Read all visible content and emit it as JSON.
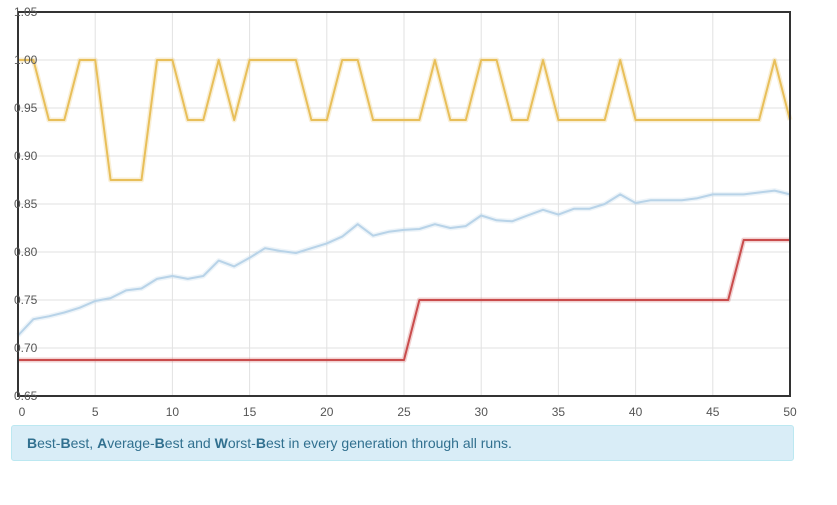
{
  "chart_data": {
    "type": "line",
    "x": [
      0,
      1,
      2,
      3,
      4,
      5,
      6,
      7,
      8,
      9,
      10,
      11,
      12,
      13,
      14,
      15,
      16,
      17,
      18,
      19,
      20,
      21,
      22,
      23,
      24,
      25,
      26,
      27,
      28,
      29,
      30,
      31,
      32,
      33,
      34,
      35,
      36,
      37,
      38,
      39,
      40,
      41,
      42,
      43,
      44,
      45,
      46,
      47,
      48,
      49,
      50
    ],
    "xlim": [
      0,
      50
    ],
    "ylim": [
      0.65,
      1.05
    ],
    "x_ticks": [
      0,
      5,
      10,
      15,
      20,
      25,
      30,
      35,
      40,
      45,
      50
    ],
    "y_ticks": [
      0.65,
      0.7,
      0.75,
      0.8,
      0.85,
      0.9,
      0.95,
      1.0,
      1.05
    ],
    "x_tick_labels": [
      "0",
      "5",
      "10",
      "15",
      "20",
      "25",
      "30",
      "35",
      "40",
      "45",
      "50"
    ],
    "y_tick_labels": [
      "0.65",
      "0.70",
      "0.75",
      "0.80",
      "0.85",
      "0.90",
      "0.95",
      "1.00",
      "1.05"
    ],
    "grid": true,
    "series": [
      {
        "color": "#e8bf5a",
        "values": [
          1.0,
          1.0,
          0.9375,
          0.9375,
          1.0,
          1.0,
          0.875,
          0.875,
          0.875,
          1.0,
          1.0,
          0.9375,
          0.9375,
          1.0,
          0.9375,
          1.0,
          1.0,
          1.0,
          1.0,
          0.9375,
          0.9375,
          1.0,
          1.0,
          0.9375,
          0.9375,
          0.9375,
          0.9375,
          1.0,
          0.9375,
          0.9375,
          1.0,
          1.0,
          0.9375,
          0.9375,
          1.0,
          0.9375,
          0.9375,
          0.9375,
          0.9375,
          1.0,
          0.9375,
          0.9375,
          0.9375,
          0.9375,
          0.9375,
          0.9375,
          0.9375,
          0.9375,
          0.9375,
          1.0,
          0.9375
        ]
      },
      {
        "color": "#b8d3e8",
        "values": [
          0.713,
          0.73,
          0.733,
          0.737,
          0.742,
          0.749,
          0.752,
          0.76,
          0.762,
          0.772,
          0.775,
          0.772,
          0.775,
          0.791,
          0.785,
          0.794,
          0.804,
          0.801,
          0.799,
          0.804,
          0.809,
          0.816,
          0.829,
          0.817,
          0.821,
          0.823,
          0.824,
          0.829,
          0.825,
          0.827,
          0.838,
          0.833,
          0.832,
          0.838,
          0.844,
          0.839,
          0.845,
          0.845,
          0.85,
          0.86,
          0.851,
          0.854,
          0.854,
          0.854,
          0.856,
          0.86,
          0.86,
          0.86,
          0.862,
          0.864,
          0.86
        ]
      },
      {
        "color": "#c94c4c",
        "values": [
          0.6875,
          0.6875,
          0.6875,
          0.6875,
          0.6875,
          0.6875,
          0.6875,
          0.6875,
          0.6875,
          0.6875,
          0.6875,
          0.6875,
          0.6875,
          0.6875,
          0.6875,
          0.6875,
          0.6875,
          0.6875,
          0.6875,
          0.6875,
          0.6875,
          0.6875,
          0.6875,
          0.6875,
          0.6875,
          0.6875,
          0.75,
          0.75,
          0.75,
          0.75,
          0.75,
          0.75,
          0.75,
          0.75,
          0.75,
          0.75,
          0.75,
          0.75,
          0.75,
          0.75,
          0.75,
          0.75,
          0.75,
          0.75,
          0.75,
          0.75,
          0.75,
          0.8125,
          0.8125,
          0.8125,
          0.8125
        ]
      }
    ]
  },
  "caption": {
    "b1": "B",
    "t1": "est-",
    "b2": "B",
    "t2": "est, ",
    "b3": "A",
    "t3": "verage-",
    "b4": "B",
    "t4": "est and ",
    "b5": "W",
    "t5": "orst-",
    "b6": "B",
    "t6": "est in every generation through all runs."
  }
}
